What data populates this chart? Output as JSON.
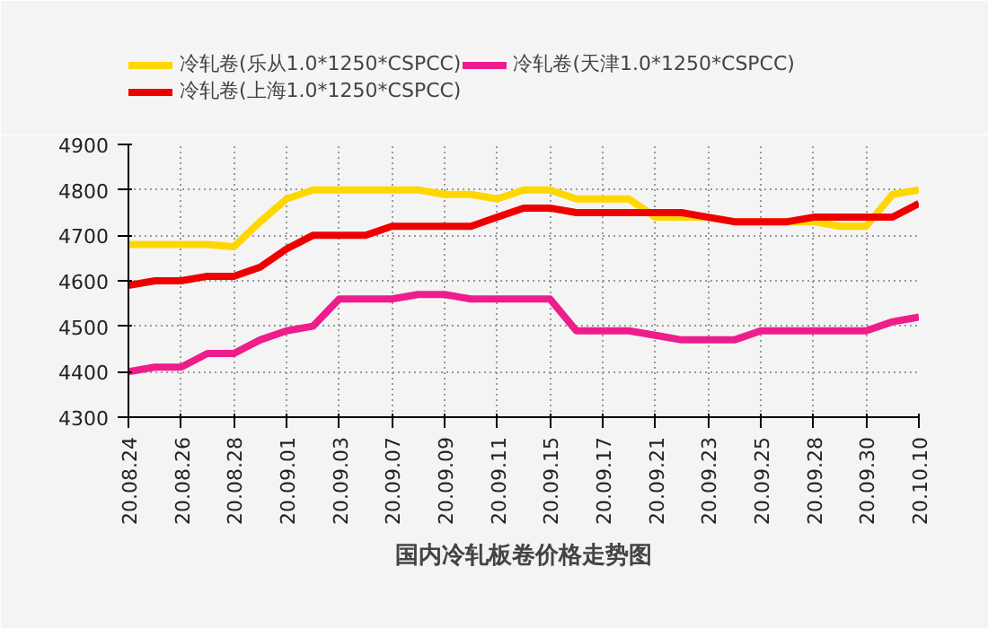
{
  "chart_data": {
    "type": "line",
    "title": "国内冷轧板卷价格走势图",
    "categories": [
      "20.08.24",
      null,
      "20.08.26",
      null,
      "20.08.28",
      null,
      "20.09.01",
      null,
      "20.09.03",
      null,
      "20.09.07",
      null,
      "20.09.09",
      null,
      "20.09.11",
      null,
      "20.09.15",
      null,
      "20.09.17",
      null,
      "20.09.21",
      null,
      "20.09.23",
      null,
      "20.09.25",
      null,
      "20.09.28",
      null,
      "20.09.30",
      null,
      "20.10.10"
    ],
    "series": [
      {
        "name": "冷轧卷(乐从1.0*1250*CSPCC)",
        "color": "#ffd700",
        "values": [
          4680,
          4680,
          4680,
          4680,
          4675,
          4730,
          4780,
          4800,
          4800,
          4800,
          4800,
          4800,
          4790,
          4790,
          4780,
          4800,
          4800,
          4780,
          4780,
          4780,
          4740,
          4740,
          4740,
          4730,
          4730,
          4730,
          4730,
          4720,
          4720,
          4790,
          4800
        ]
      },
      {
        "name": "冷轧卷(上海1.0*1250*CSPCC)",
        "color": "#ee0000",
        "values": [
          4590,
          4600,
          4600,
          4610,
          4610,
          4630,
          4670,
          4700,
          4700,
          4700,
          4720,
          4720,
          4720,
          4720,
          4740,
          4760,
          4760,
          4750,
          4750,
          4750,
          4750,
          4750,
          4740,
          4730,
          4730,
          4730,
          4740,
          4740,
          4740,
          4740,
          4770
        ]
      },
      {
        "name": "冷轧卷(天津1.0*1250*CSPCC)",
        "color": "#ee1c8c",
        "values": [
          4400,
          4410,
          4410,
          4440,
          4440,
          4470,
          4490,
          4500,
          4560,
          4560,
          4560,
          4570,
          4570,
          4560,
          4560,
          4560,
          4560,
          4490,
          4490,
          4490,
          4480,
          4470,
          4470,
          4470,
          4490,
          4490,
          4490,
          4490,
          4490,
          4510,
          4520
        ]
      }
    ],
    "ylim": [
      4300,
      4900
    ],
    "yticks": [
      4300,
      4400,
      4500,
      4600,
      4700,
      4800,
      4900
    ],
    "grid": true,
    "legend": "top",
    "line_style": "solid",
    "marker": "none"
  }
}
